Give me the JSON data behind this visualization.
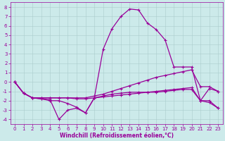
{
  "xlabel": "Windchill (Refroidissement éolien,°C)",
  "xlim": [
    -0.5,
    23.5
  ],
  "ylim": [
    -4.5,
    8.5
  ],
  "xticks": [
    0,
    1,
    2,
    3,
    4,
    5,
    6,
    7,
    8,
    9,
    10,
    11,
    12,
    13,
    14,
    15,
    16,
    17,
    18,
    19,
    20,
    21,
    22,
    23
  ],
  "yticks": [
    -4,
    -3,
    -2,
    -1,
    0,
    1,
    2,
    3,
    4,
    5,
    6,
    7,
    8
  ],
  "bg_color": "#cceaea",
  "line_color": "#990099",
  "grid_color": "#aacccc",
  "curves": [
    {
      "x": [
        0,
        1,
        2,
        3,
        4,
        5,
        6,
        7,
        8,
        9,
        10,
        11,
        12,
        13,
        14,
        15,
        16,
        17,
        18,
        19,
        20,
        21,
        22,
        23
      ],
      "y": [
        0,
        -1.2,
        -1.7,
        -1.7,
        -1.7,
        -1.7,
        -1.7,
        -1.8,
        -1.8,
        -1.7,
        -1.6,
        -1.5,
        -1.4,
        -1.3,
        -1.2,
        -1.1,
        -1.0,
        -0.9,
        -0.8,
        -0.7,
        -0.6,
        -2.0,
        -2.2,
        -2.8
      ]
    },
    {
      "x": [
        0,
        1,
        2,
        3,
        4,
        5,
        6,
        7,
        8,
        9,
        10,
        11,
        12,
        13,
        14,
        15,
        16,
        17,
        18,
        19,
        20,
        21,
        22,
        23
      ],
      "y": [
        0,
        -1.2,
        -1.7,
        -1.7,
        -1.7,
        -1.7,
        -1.7,
        -1.7,
        -1.7,
        -1.5,
        -1.3,
        -1.0,
        -0.7,
        -0.4,
        -0.1,
        0.2,
        0.5,
        0.7,
        0.9,
        1.1,
        1.3,
        -0.5,
        -0.5,
        -1.0
      ]
    },
    {
      "x": [
        0,
        1,
        2,
        3,
        4,
        5,
        6,
        7,
        8,
        9,
        10,
        11,
        12,
        13,
        14,
        15,
        16,
        17,
        18,
        19,
        20,
        21,
        22,
        23
      ],
      "y": [
        0,
        -1.2,
        -1.7,
        -1.8,
        -1.9,
        -4.0,
        -3.0,
        -2.8,
        -3.3,
        -1.7,
        -1.5,
        -1.3,
        -1.2,
        -1.1,
        -1.1,
        -1.1,
        -1.1,
        -1.0,
        -0.9,
        -0.8,
        -0.8,
        -2.0,
        -2.0,
        -2.8
      ]
    },
    {
      "x": [
        0,
        1,
        2,
        3,
        4,
        5,
        6,
        7,
        8,
        9,
        10,
        11,
        12,
        13,
        14,
        15,
        16,
        17,
        18,
        19,
        20,
        21,
        22,
        23
      ],
      "y": [
        0,
        -1.2,
        -1.7,
        -1.8,
        -2.0,
        -2.0,
        -2.3,
        -2.7,
        -3.3,
        -1.7,
        3.5,
        5.7,
        7.0,
        7.8,
        7.7,
        6.3,
        5.6,
        4.5,
        1.6,
        1.6,
        1.6,
        -2.0,
        -0.7,
        -1.0
      ]
    }
  ],
  "figsize": [
    3.2,
    2.0
  ],
  "dpi": 100,
  "tick_fontsize": 5,
  "xlabel_fontsize": 5.5,
  "linewidth": 0.9,
  "markersize": 3
}
